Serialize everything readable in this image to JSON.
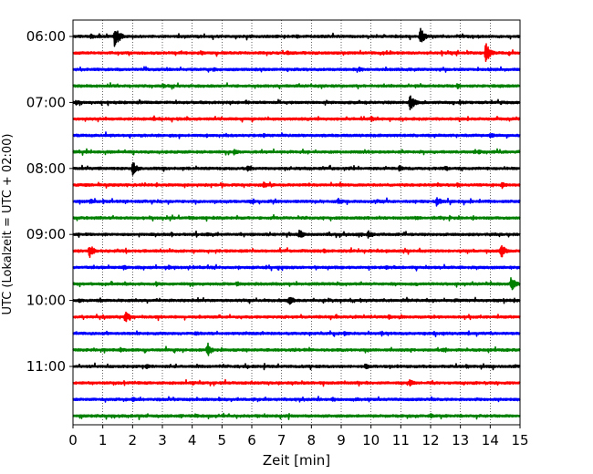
{
  "chart_data": {
    "type": "line",
    "title": "",
    "xlabel": "Zeit  [min]",
    "ylabel": "UTC (Lokalzeit = UTC + 02:00)",
    "xlim": [
      0,
      15
    ],
    "x_ticks": [
      "0",
      "1",
      "2",
      "3",
      "4",
      "5",
      "6",
      "7",
      "8",
      "9",
      "10",
      "11",
      "12",
      "13",
      "14",
      "15"
    ],
    "y_ticks": [
      "06:00",
      "07:00",
      "08:00",
      "09:00",
      "10:00",
      "11:00"
    ],
    "grid": "vertical-dotted",
    "trace_interval_minutes": 15,
    "color_cycle": [
      "#000000",
      "#ff0000",
      "#0000ff",
      "#008000"
    ],
    "series": [
      {
        "start": "06:00",
        "color": "#000000",
        "events": [
          {
            "t": 1.4,
            "amp": 1.5
          },
          {
            "t": 11.65,
            "amp": 1.1
          },
          {
            "t": 0.6,
            "amp": 0.35
          },
          {
            "t": 7.5,
            "amp": 0.3
          }
        ]
      },
      {
        "start": "06:15",
        "color": "#ff0000",
        "events": [
          {
            "t": 13.85,
            "amp": 1.3
          },
          {
            "t": 7.2,
            "amp": 0.3
          },
          {
            "t": 4.3,
            "amp": 0.3
          }
        ]
      },
      {
        "start": "06:30",
        "color": "#0000ff",
        "events": [
          {
            "t": 4.7,
            "amp": 0.3
          },
          {
            "t": 9.6,
            "amp": 0.3
          }
        ]
      },
      {
        "start": "06:45",
        "color": "#008000",
        "events": [
          {
            "t": 3.0,
            "amp": 0.3
          },
          {
            "t": 12.9,
            "amp": 0.35
          }
        ]
      },
      {
        "start": "07:00",
        "color": "#000000",
        "events": [
          {
            "t": 11.3,
            "amp": 1.2
          },
          {
            "t": 0.1,
            "amp": 0.35
          },
          {
            "t": 5.8,
            "amp": 0.3
          }
        ]
      },
      {
        "start": "07:15",
        "color": "#ff0000",
        "events": [
          {
            "t": 10.0,
            "amp": 0.35
          },
          {
            "t": 2.7,
            "amp": 0.25
          }
        ]
      },
      {
        "start": "07:30",
        "color": "#0000ff",
        "events": [
          {
            "t": 14.0,
            "amp": 0.35
          },
          {
            "t": 6.4,
            "amp": 0.25
          }
        ]
      },
      {
        "start": "07:45",
        "color": "#008000",
        "events": [
          {
            "t": 5.4,
            "amp": 0.4
          },
          {
            "t": 13.6,
            "amp": 0.3
          }
        ]
      },
      {
        "start": "08:00",
        "color": "#000000",
        "events": [
          {
            "t": 2.0,
            "amp": 0.9
          },
          {
            "t": 5.85,
            "amp": 0.45
          },
          {
            "t": 10.95,
            "amp": 0.4
          },
          {
            "t": 12.5,
            "amp": 0.35
          }
        ]
      },
      {
        "start": "08:15",
        "color": "#ff0000",
        "events": [
          {
            "t": 6.4,
            "amp": 0.45
          },
          {
            "t": 14.4,
            "amp": 0.45
          },
          {
            "t": 12.9,
            "amp": 0.3
          }
        ]
      },
      {
        "start": "08:30",
        "color": "#0000ff",
        "events": [
          {
            "t": 12.2,
            "amp": 0.65
          },
          {
            "t": 8.9,
            "amp": 0.45
          },
          {
            "t": 0.6,
            "amp": 0.3
          }
        ]
      },
      {
        "start": "08:45",
        "color": "#008000",
        "events": [
          {
            "t": 11.5,
            "amp": 0.3
          },
          {
            "t": 3.9,
            "amp": 0.25
          }
        ]
      },
      {
        "start": "09:00",
        "color": "#000000",
        "events": [
          {
            "t": 7.6,
            "amp": 0.6
          },
          {
            "t": 9.9,
            "amp": 0.5
          },
          {
            "t": 4.5,
            "amp": 0.3
          }
        ]
      },
      {
        "start": "09:15",
        "color": "#ff0000",
        "events": [
          {
            "t": 0.55,
            "amp": 0.9
          },
          {
            "t": 14.35,
            "amp": 1.0
          },
          {
            "t": 8.4,
            "amp": 0.3
          }
        ]
      },
      {
        "start": "09:30",
        "color": "#0000ff",
        "events": [
          {
            "t": 1.7,
            "amp": 0.3
          },
          {
            "t": 3.2,
            "amp": 0.3
          },
          {
            "t": 10.5,
            "amp": 0.25
          }
        ]
      },
      {
        "start": "09:45",
        "color": "#008000",
        "events": [
          {
            "t": 14.7,
            "amp": 1.0
          },
          {
            "t": 5.5,
            "amp": 0.4
          },
          {
            "t": 2.8,
            "amp": 0.3
          }
        ]
      },
      {
        "start": "10:00",
        "color": "#000000",
        "events": [
          {
            "t": 7.25,
            "amp": 0.7
          },
          {
            "t": 0.2,
            "amp": 0.3
          },
          {
            "t": 12.8,
            "amp": 0.3
          }
        ]
      },
      {
        "start": "10:15",
        "color": "#ff0000",
        "events": [
          {
            "t": 1.75,
            "amp": 0.8
          },
          {
            "t": 10.6,
            "amp": 0.3
          }
        ]
      },
      {
        "start": "10:30",
        "color": "#0000ff",
        "events": [
          {
            "t": 9.1,
            "amp": 0.3
          },
          {
            "t": 4.1,
            "amp": 0.3
          }
        ]
      },
      {
        "start": "10:45",
        "color": "#008000",
        "events": [
          {
            "t": 4.5,
            "amp": 1.0
          },
          {
            "t": 1.6,
            "amp": 0.35
          },
          {
            "t": 12.4,
            "amp": 0.3
          }
        ]
      },
      {
        "start": "11:00",
        "color": "#000000",
        "events": [
          {
            "t": 9.8,
            "amp": 0.4
          },
          {
            "t": 2.45,
            "amp": 0.4
          },
          {
            "t": 13.2,
            "amp": 0.3
          }
        ]
      },
      {
        "start": "11:15",
        "color": "#ff0000",
        "events": [
          {
            "t": 11.3,
            "amp": 0.55
          },
          {
            "t": 4.0,
            "amp": 0.3
          }
        ]
      },
      {
        "start": "11:30",
        "color": "#0000ff",
        "events": [
          {
            "t": 8.7,
            "amp": 0.35
          },
          {
            "t": 2.0,
            "amp": 0.3
          },
          {
            "t": 4.9,
            "amp": 0.3
          }
        ]
      },
      {
        "start": "11:45",
        "color": "#008000",
        "events": [
          {
            "t": 4.1,
            "amp": 0.3
          },
          {
            "t": 12.0,
            "amp": 0.3
          }
        ]
      }
    ]
  }
}
